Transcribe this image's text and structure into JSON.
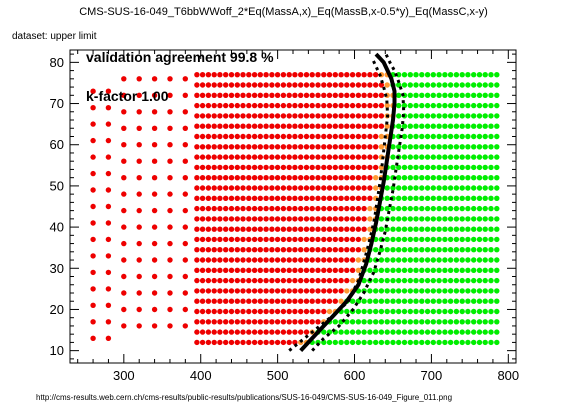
{
  "title": "CMS-SUS-16-049_T6bbWWoff_2*Eq(MassA,x)_Eq(MassB,x-0.5*y)_Eq(MassC,x-y)",
  "dataset_label": "dataset: upper limit",
  "footer_url": "http://cms-results.web.cern.ch/cms-results/public-results/publications/SUS-16-049/CMS-SUS-16-049_Figure_011.png",
  "chart_data": {
    "type": "scatter",
    "title": "CMS-SUS-16-049_T6bbWWoff_2*Eq(MassA,x)_Eq(MassB,x-0.5*y)_Eq(MassC,x-y)",
    "xlabel": "",
    "ylabel": "",
    "xlim": [
      230,
      810
    ],
    "ylim": [
      7,
      83
    ],
    "x_ticks": [
      300,
      400,
      500,
      600,
      700,
      800
    ],
    "y_ticks": [
      10,
      20,
      30,
      40,
      50,
      60,
      70,
      80
    ],
    "grid": false,
    "annotations": [
      "validation agreement 99.8 %",
      "k-factor 1.00"
    ],
    "colors": {
      "excluded": "#ee0000",
      "allowed": "#00ee00",
      "disagree": "#ff9933",
      "line": "#000000"
    },
    "sparse_points": {
      "x": [
        260,
        280,
        300,
        320,
        340,
        360,
        380
      ],
      "y_ranges": [
        [
          13,
          73
        ],
        [
          13,
          73
        ],
        [
          16,
          77
        ],
        [
          16,
          77
        ],
        [
          16,
          77
        ],
        [
          16,
          77
        ],
        [
          16,
          77
        ]
      ],
      "step": 4
    },
    "grid_points": {
      "x_range": [
        395,
        790
      ],
      "x_step": 7.5,
      "y_range": [
        12,
        77
      ],
      "y_step": 2.5
    },
    "observed_limit": {
      "x": [
        530,
        545,
        560,
        575,
        590,
        605,
        615,
        622,
        628,
        633,
        638,
        642,
        646,
        650,
        652,
        652,
        648,
        643,
        638,
        633,
        628
      ],
      "y": [
        10,
        13,
        16,
        19,
        22,
        26,
        31,
        36,
        41,
        46,
        51,
        56,
        61,
        66,
        70,
        73,
        76,
        78,
        80,
        81,
        82
      ]
    },
    "expected_limit_low": {
      "x": [
        515,
        535,
        555,
        575,
        592,
        605,
        613,
        620,
        626,
        630,
        634,
        637,
        640,
        643,
        642,
        638,
        633,
        628,
        623
      ],
      "y": [
        10,
        13,
        16,
        19,
        22,
        27,
        32,
        37,
        42,
        47,
        52,
        57,
        62,
        67,
        71,
        74,
        77,
        79,
        81
      ]
    },
    "expected_limit_high": {
      "x": [
        545,
        560,
        580,
        598,
        612,
        625,
        633,
        640,
        645,
        650,
        654,
        658,
        662,
        664,
        663,
        658,
        652,
        646,
        641
      ],
      "y": [
        10,
        13,
        16,
        20,
        24,
        29,
        34,
        39,
        44,
        49,
        54,
        59,
        64,
        68,
        72,
        75,
        78,
        80,
        82
      ]
    }
  }
}
